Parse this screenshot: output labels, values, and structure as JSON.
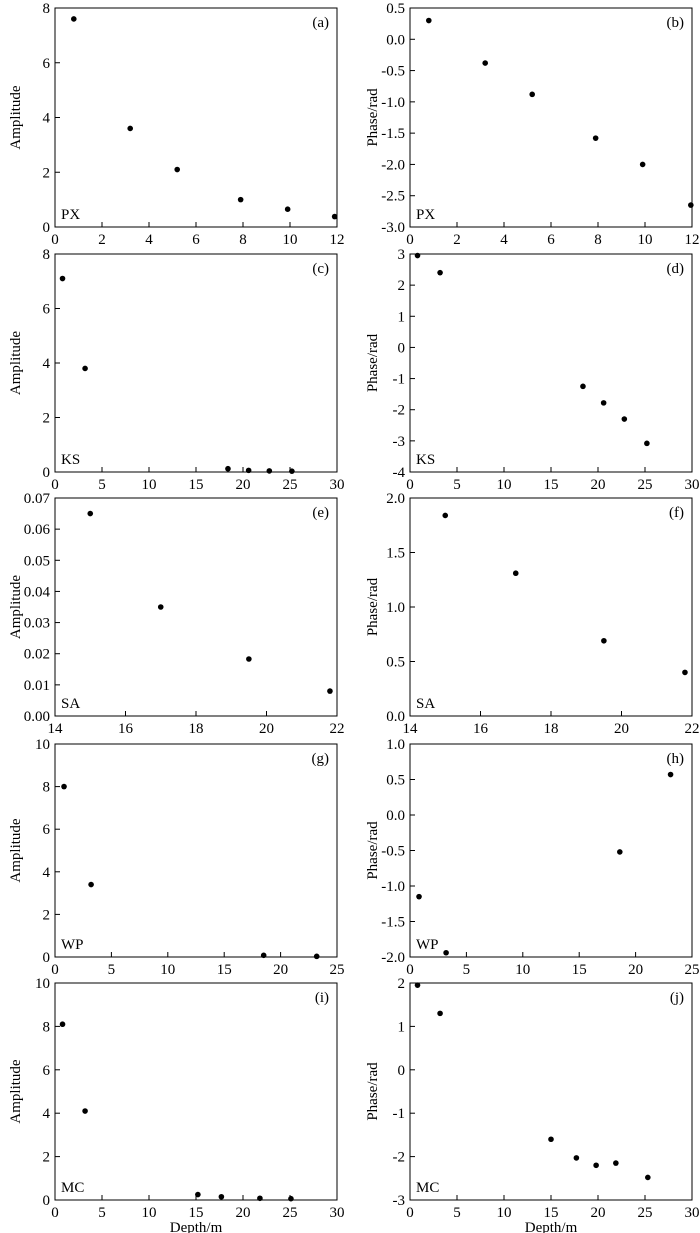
{
  "chart_data": [
    {
      "id": "a",
      "type": "scatter",
      "panel_label": "(a)",
      "site_label": "PX",
      "xlabel": "",
      "ylabel": "Amplitude",
      "xlim": [
        0,
        12
      ],
      "ylim": [
        0,
        8
      ],
      "xticks": [
        0,
        2,
        4,
        6,
        8,
        10,
        12
      ],
      "yticks": [
        0,
        2,
        4,
        6,
        8
      ],
      "xtick_labels": [
        "0",
        "2",
        "4",
        "6",
        "8",
        "10",
        "12"
      ],
      "ytick_labels": [
        "0",
        "2",
        "4",
        "6",
        "8"
      ],
      "x": [
        0.8,
        3.2,
        5.2,
        7.9,
        9.9,
        11.9
      ],
      "y": [
        7.6,
        3.6,
        2.1,
        1.0,
        0.65,
        0.38
      ]
    },
    {
      "id": "b",
      "type": "scatter",
      "panel_label": "(b)",
      "site_label": "PX",
      "xlabel": "",
      "ylabel": "Phase/rad",
      "xlim": [
        0,
        12
      ],
      "ylim": [
        -3.0,
        0.5
      ],
      "xticks": [
        0,
        2,
        4,
        6,
        8,
        10,
        12
      ],
      "yticks": [
        -3.0,
        -2.5,
        -2.0,
        -1.5,
        -1.0,
        -0.5,
        0.0,
        0.5
      ],
      "xtick_labels": [
        "0",
        "2",
        "4",
        "6",
        "8",
        "10",
        "12"
      ],
      "ytick_labels": [
        "-3.0",
        "-2.5",
        "-2.0",
        "-1.5",
        "-1.0",
        "-0.5",
        "0.0",
        "0.5"
      ],
      "x": [
        0.8,
        3.2,
        5.2,
        7.9,
        9.9,
        11.95
      ],
      "y": [
        0.3,
        -0.38,
        -0.88,
        -1.58,
        -2.0,
        -2.65
      ]
    },
    {
      "id": "c",
      "type": "scatter",
      "panel_label": "(c)",
      "site_label": "KS",
      "xlabel": "",
      "ylabel": "Amplitude",
      "xlim": [
        0,
        30
      ],
      "ylim": [
        0,
        8
      ],
      "xticks": [
        0,
        5,
        10,
        15,
        20,
        25,
        30
      ],
      "yticks": [
        0,
        2,
        4,
        6,
        8
      ],
      "xtick_labels": [
        "0",
        "5",
        "10",
        "15",
        "20",
        "25",
        "30"
      ],
      "ytick_labels": [
        "0",
        "2",
        "4",
        "6",
        "8"
      ],
      "x": [
        0.8,
        3.2,
        18.4,
        20.6,
        22.8,
        25.2
      ],
      "y": [
        7.1,
        3.8,
        0.12,
        0.06,
        0.04,
        0.03
      ]
    },
    {
      "id": "d",
      "type": "scatter",
      "panel_label": "(d)",
      "site_label": "KS",
      "xlabel": "",
      "ylabel": "Phase/rad",
      "xlim": [
        0,
        30
      ],
      "ylim": [
        -4,
        3
      ],
      "xticks": [
        0,
        5,
        10,
        15,
        20,
        25,
        30
      ],
      "yticks": [
        -4,
        -3,
        -2,
        -1,
        0,
        1,
        2,
        3
      ],
      "xtick_labels": [
        "0",
        "5",
        "10",
        "15",
        "20",
        "25",
        "30"
      ],
      "ytick_labels": [
        "-4",
        "-3",
        "-2",
        "-1",
        "0",
        "1",
        "2",
        "3"
      ],
      "x": [
        0.8,
        3.2,
        18.4,
        20.6,
        22.8,
        25.2
      ],
      "y": [
        2.95,
        2.4,
        -1.25,
        -1.78,
        -2.3,
        -3.08
      ]
    },
    {
      "id": "e",
      "type": "scatter",
      "panel_label": "(e)",
      "site_label": "SA",
      "xlabel": "",
      "ylabel": "Amplitude",
      "xlim": [
        14,
        22
      ],
      "ylim": [
        0,
        0.07
      ],
      "xticks": [
        14,
        16,
        18,
        20,
        22
      ],
      "yticks": [
        0,
        0.01,
        0.02,
        0.03,
        0.04,
        0.05,
        0.06,
        0.07
      ],
      "xtick_labels": [
        "14",
        "16",
        "18",
        "20",
        "22"
      ],
      "ytick_labels": [
        "0.00",
        "0.01",
        "0.02",
        "0.03",
        "0.04",
        "0.05",
        "0.06",
        "0.07"
      ],
      "x": [
        15.0,
        17.0,
        19.5,
        21.8
      ],
      "y": [
        0.065,
        0.035,
        0.0183,
        0.008
      ]
    },
    {
      "id": "f",
      "type": "scatter",
      "panel_label": "(f)",
      "site_label": "SA",
      "xlabel": "",
      "ylabel": "Phase/rad",
      "xlim": [
        14,
        22
      ],
      "ylim": [
        0,
        2.0
      ],
      "xticks": [
        14,
        16,
        18,
        20,
        22
      ],
      "yticks": [
        0,
        0.5,
        1.0,
        1.5,
        2.0
      ],
      "xtick_labels": [
        "14",
        "16",
        "18",
        "20",
        "22"
      ],
      "ytick_labels": [
        "0.0",
        "0.5",
        "1.0",
        "1.5",
        "2.0"
      ],
      "x": [
        15.0,
        17.0,
        19.5,
        21.8
      ],
      "y": [
        1.84,
        1.31,
        0.69,
        0.4
      ]
    },
    {
      "id": "g",
      "type": "scatter",
      "panel_label": "(g)",
      "site_label": "WP",
      "xlabel": "",
      "ylabel": "Amplitude",
      "xlim": [
        0,
        25
      ],
      "ylim": [
        0,
        10
      ],
      "xticks": [
        0,
        5,
        10,
        15,
        20,
        25
      ],
      "yticks": [
        0,
        2,
        4,
        6,
        8,
        10
      ],
      "xtick_labels": [
        "0",
        "5",
        "10",
        "15",
        "20",
        "25"
      ],
      "ytick_labels": [
        "0",
        "2",
        "4",
        "6",
        "8",
        "10"
      ],
      "x": [
        0.8,
        3.2,
        18.5,
        23.2
      ],
      "y": [
        8.0,
        3.4,
        0.08,
        0.03
      ]
    },
    {
      "id": "h",
      "type": "scatter",
      "panel_label": "(h)",
      "site_label": "WP",
      "xlabel": "",
      "ylabel": "Phase/rad",
      "xlim": [
        0,
        25
      ],
      "ylim": [
        -2.0,
        1.0
      ],
      "xticks": [
        0,
        5,
        10,
        15,
        20,
        25
      ],
      "yticks": [
        -2.0,
        -1.5,
        -1.0,
        -0.5,
        0.0,
        0.5,
        1.0
      ],
      "xtick_labels": [
        "0",
        "5",
        "10",
        "15",
        "20",
        "25"
      ],
      "ytick_labels": [
        "-2.0",
        "-1.5",
        "-1.0",
        "-0.5",
        "0.0",
        "0.5",
        "1.0"
      ],
      "x": [
        0.8,
        3.2,
        18.6,
        23.1
      ],
      "y": [
        -1.15,
        -1.94,
        -0.52,
        0.57
      ]
    },
    {
      "id": "i",
      "type": "scatter",
      "panel_label": "(i)",
      "site_label": "MC",
      "xlabel": "Depth/m",
      "ylabel": "Amplitude",
      "xlim": [
        0,
        30
      ],
      "ylim": [
        0,
        10
      ],
      "xticks": [
        0,
        5,
        10,
        15,
        20,
        25,
        30
      ],
      "yticks": [
        0,
        2,
        4,
        6,
        8,
        10
      ],
      "xtick_labels": [
        "0",
        "5",
        "10",
        "15",
        "20",
        "25",
        "30"
      ],
      "ytick_labels": [
        "0",
        "2",
        "4",
        "6",
        "8",
        "10"
      ],
      "x": [
        0.8,
        3.2,
        15.2,
        17.7,
        21.8,
        25.1
      ],
      "y": [
        8.1,
        4.1,
        0.25,
        0.15,
        0.08,
        0.06
      ]
    },
    {
      "id": "j",
      "type": "scatter",
      "panel_label": "(j)",
      "site_label": "MC",
      "xlabel": "Depth/m",
      "ylabel": "Phase/rad",
      "xlim": [
        0,
        30
      ],
      "ylim": [
        -3,
        2
      ],
      "xticks": [
        0,
        5,
        10,
        15,
        20,
        25,
        30
      ],
      "yticks": [
        -3,
        -2,
        -1,
        0,
        1,
        2
      ],
      "xtick_labels": [
        "0",
        "5",
        "10",
        "15",
        "20",
        "25",
        "30"
      ],
      "ytick_labels": [
        "-3",
        "-2",
        "-1",
        "0",
        "1",
        "2"
      ],
      "x": [
        0.8,
        3.2,
        15.0,
        17.7,
        19.8,
        21.9,
        25.3
      ],
      "y": [
        1.95,
        1.3,
        -1.6,
        -2.03,
        -2.2,
        -2.15,
        -2.48
      ]
    }
  ]
}
